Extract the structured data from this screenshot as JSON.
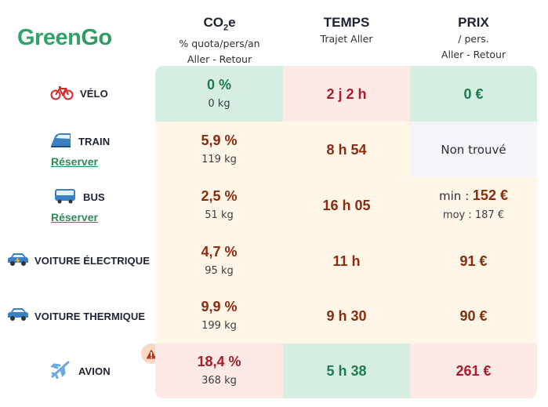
{
  "logo": {
    "part1": "Green",
    "part2": "Go"
  },
  "columns": {
    "co2": {
      "title_main": "CO",
      "title_sub": "2",
      "title_end": "e",
      "line1": "% quota/pers/an",
      "line2": "Aller - Retour"
    },
    "temps": {
      "title": "TEMPS",
      "line1": "",
      "line2": "Trajet Aller"
    },
    "prix": {
      "title": "PRIX",
      "line1": "/ pers.",
      "line2": "Aller - Retour"
    }
  },
  "rows": [
    {
      "label": "VÉLO",
      "icon": "bicycle-icon",
      "co2": "0 %",
      "co2_sub": "0 kg",
      "temps": "2 j 2 h",
      "prix": "0 €"
    },
    {
      "label": "TRAIN",
      "icon": "train-icon",
      "reserve": "Réserver",
      "co2": "5,9 %",
      "co2_sub": "119 kg",
      "temps": "8 h 54",
      "prix": "Non trouvé"
    },
    {
      "label": "BUS",
      "icon": "bus-icon",
      "reserve": "Réserver",
      "co2": "2,5 %",
      "co2_sub": "51 kg",
      "temps": "16 h 05",
      "prix_min_label": "min : ",
      "prix_min": "152 €",
      "prix_moy": "moy : 187 €"
    },
    {
      "label": "VOITURE ÉLECTRIQUE",
      "icon": "electric-car-icon",
      "co2": "4,7 %",
      "co2_sub": "95 kg",
      "temps": "11 h",
      "prix": "91 €"
    },
    {
      "label": "VOITURE THERMIQUE",
      "icon": "car-icon",
      "co2": "9,9 %",
      "co2_sub": "199 kg",
      "temps": "9 h 30",
      "prix": "90 €"
    },
    {
      "label": "AVION",
      "icon": "airplane-icon",
      "co2": "18,4 %",
      "co2_sub": "368 kg",
      "temps": "5 h 38",
      "prix": "261 €",
      "warning_icon": "warning-icon"
    }
  ],
  "colors": {
    "green_bg": "#d6ede1",
    "pink_bg": "#fde9e6",
    "cream_bg": "#fff6e8",
    "lavender_bg": "#f6f4fb",
    "green_text": "#1f7a4d",
    "brown_text": "#8a2b0d",
    "red_text": "#a81c2b"
  }
}
